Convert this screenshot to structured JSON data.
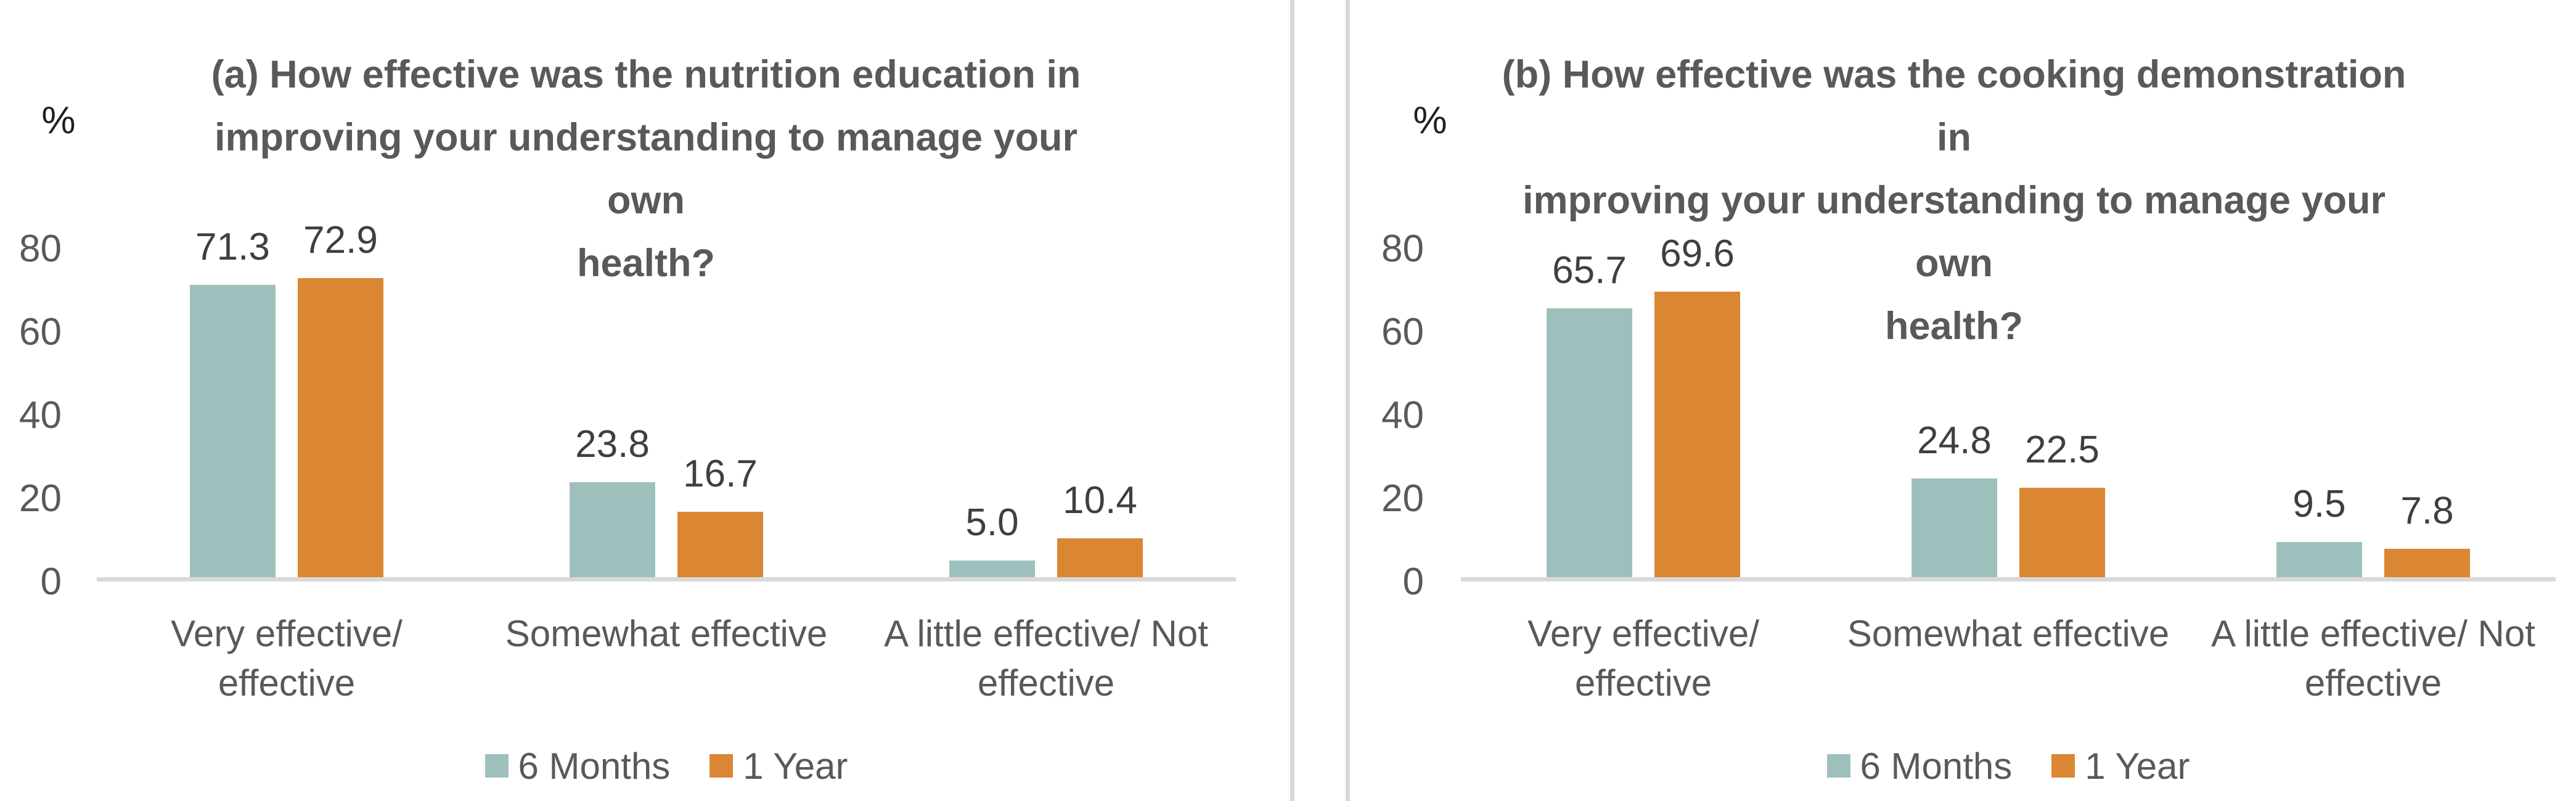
{
  "figure": {
    "kind": "two-panel clustered bar chart figure",
    "accent_teal": "#9ec0bd",
    "accent_orange": "#db8633",
    "axis_line_color": "#d9d9d9",
    "text_gray": "#595959"
  },
  "chart_data": [
    {
      "type": "bar",
      "title": "(a) How effective was the nutrition education in improving your understanding to manage your own health?",
      "title_lines": [
        "(a) How effective was the nutrition education in",
        "improving your understanding to manage your own",
        "health?"
      ],
      "unit_label": "%",
      "xlabel": "",
      "ylabel": "%",
      "ylim": [
        0,
        80
      ],
      "yticks": [
        0,
        20,
        40,
        60,
        80
      ],
      "ytick_labels": [
        "80",
        "60",
        "40",
        "20",
        "0"
      ],
      "grid": false,
      "legend_position": "bottom",
      "categories": [
        "Very effective/ effective",
        "Somewhat effective",
        "A little effective/ Not effective"
      ],
      "category_lines": [
        [
          "Very effective/",
          "effective"
        ],
        [
          "Somewhat effective",
          ""
        ],
        [
          "A little effective/ Not",
          "effective"
        ]
      ],
      "series": [
        {
          "name": "6 Months",
          "color": "#9ec0bd",
          "values": [
            71.3,
            23.8,
            5.0
          ],
          "labels": [
            "71.3",
            "23.8",
            "5.0"
          ]
        },
        {
          "name": "1 Year",
          "color": "#db8633",
          "values": [
            72.9,
            16.7,
            10.4
          ],
          "labels": [
            "72.9",
            "16.7",
            "10.4"
          ]
        }
      ]
    },
    {
      "type": "bar",
      "title": "(b) How effective was the cooking demonstration in improving your understanding to manage your own health?",
      "title_lines": [
        "(b) How effective was the cooking demonstration in",
        "improving your understanding to manage your own",
        "health?"
      ],
      "unit_label": "%",
      "xlabel": "",
      "ylabel": "%",
      "ylim": [
        0,
        80
      ],
      "yticks": [
        0,
        20,
        40,
        60,
        80
      ],
      "ytick_labels": [
        "80",
        "60",
        "40",
        "20",
        "0"
      ],
      "grid": false,
      "legend_position": "bottom",
      "categories": [
        "Very effective/ effective",
        "Somewhat effective",
        "A little effective/ Not effective"
      ],
      "category_lines": [
        [
          "Very effective/",
          "effective"
        ],
        [
          "Somewhat effective",
          ""
        ],
        [
          "A little effective/ Not",
          "effective"
        ]
      ],
      "series": [
        {
          "name": "6 Months",
          "color": "#9ec0bd",
          "values": [
            65.7,
            24.8,
            9.5
          ],
          "labels": [
            "65.7",
            "24.8",
            "9.5"
          ]
        },
        {
          "name": "1 Year",
          "color": "#db8633",
          "values": [
            69.6,
            22.5,
            7.8
          ],
          "labels": [
            "69.6",
            "22.5",
            "7.8"
          ]
        }
      ]
    }
  ]
}
